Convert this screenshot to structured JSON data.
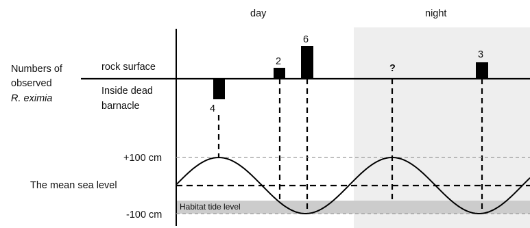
{
  "labels": {
    "day": "day",
    "night": "night",
    "y_axis_title_line1": "Numbers of",
    "y_axis_title_line2": "observed",
    "y_axis_title_line3": "R. eximia",
    "rock_surface": "rock surface",
    "inside_line1": "Inside dead",
    "inside_line2": "barnacle",
    "plus_100": "+100 cm",
    "minus_100": "-100 cm",
    "mean_sea_level": "The mean sea level",
    "habitat_tide_level": "Habitat tide level"
  },
  "observations": [
    {
      "value": "4",
      "location": "inside dead barnacle",
      "count": 4
    },
    {
      "value": "2",
      "location": "rock surface",
      "count": 2
    },
    {
      "value": "6",
      "location": "rock surface",
      "count": 6
    },
    {
      "value": "?",
      "location": "rock surface",
      "count": null
    },
    {
      "value": "3",
      "location": "rock surface",
      "count": 3
    }
  ],
  "colors": {
    "night_shading": "#eeeeee",
    "habitat_band": "#cccccc",
    "bars": "#000000",
    "dashed_reference": "#999999"
  }
}
